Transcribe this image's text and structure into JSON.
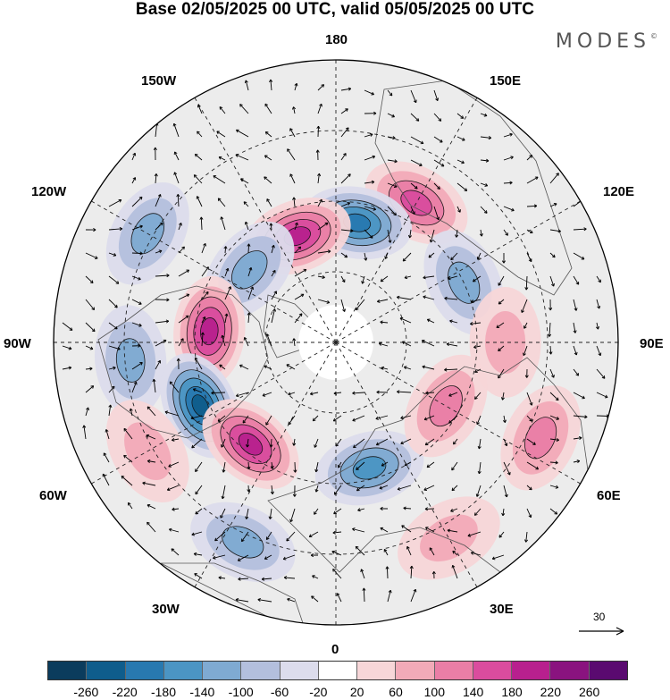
{
  "title": "Base 02/05/2025 00 UTC, valid 05/05/2025 00 UTC",
  "brand": "MODES",
  "brand_mark": "©",
  "longitude_labels": {
    "top": "180",
    "bottom": "0",
    "left": "90W",
    "right": "90E",
    "upper_left_1": "150W",
    "upper_left_2": "120W",
    "upper_right_1": "150E",
    "upper_right_2": "120E",
    "lower_left_1": "60W",
    "lower_left_2": "30W",
    "lower_right_1": "60E",
    "lower_right_2": "30E"
  },
  "reference_vector": "30",
  "colorbar": {
    "labels": [
      "-260",
      "-220",
      "-180",
      "-140",
      "-100",
      "-60",
      "-20",
      "20",
      "60",
      "100",
      "140",
      "180",
      "220",
      "260"
    ],
    "colors": [
      "#0b3c5d",
      "#0f5d8c",
      "#2879b0",
      "#4b95c4",
      "#7faad2",
      "#b3bfdd",
      "#dcdcec",
      "#ffffff",
      "#f7d6d8",
      "#f2aab8",
      "#ea7ea6",
      "#da4c9e",
      "#b8208e",
      "#8a137f",
      "#5a0a70"
    ]
  },
  "anomalies": [
    {
      "lon": 150,
      "r": 0.57,
      "kind": "pos",
      "level": 3
    },
    {
      "lon": 170,
      "r": 0.43,
      "kind": "neg",
      "level": 4
    },
    {
      "lon": -160,
      "r": 0.4,
      "kind": "pos",
      "level": 4
    },
    {
      "lon": -130,
      "r": 0.4,
      "kind": "neg",
      "level": 2
    },
    {
      "lon": -120,
      "r": 0.77,
      "kind": "neg",
      "level": 2
    },
    {
      "lon": -95,
      "r": 0.45,
      "kind": "pos",
      "level": 4
    },
    {
      "lon": -85,
      "r": 0.73,
      "kind": "neg",
      "level": 2
    },
    {
      "lon": -65,
      "r": 0.53,
      "kind": "neg",
      "level": 5
    },
    {
      "lon": -40,
      "r": 0.47,
      "kind": "pos",
      "level": 4
    },
    {
      "lon": -60,
      "r": 0.77,
      "kind": "pos",
      "level": 1
    },
    {
      "lon": -25,
      "r": 0.78,
      "kind": "neg",
      "level": 2
    },
    {
      "lon": 15,
      "r": 0.46,
      "kind": "neg",
      "level": 3
    },
    {
      "lon": 60,
      "r": 0.45,
      "kind": "pos",
      "level": 2
    },
    {
      "lon": 65,
      "r": 0.8,
      "kind": "pos",
      "level": 2
    },
    {
      "lon": 115,
      "r": 0.5,
      "kind": "neg",
      "level": 2
    },
    {
      "lon": 30,
      "r": 0.8,
      "kind": "pos",
      "level": 1
    },
    {
      "lon": 90,
      "r": 0.6,
      "kind": "pos",
      "level": 1
    }
  ]
}
